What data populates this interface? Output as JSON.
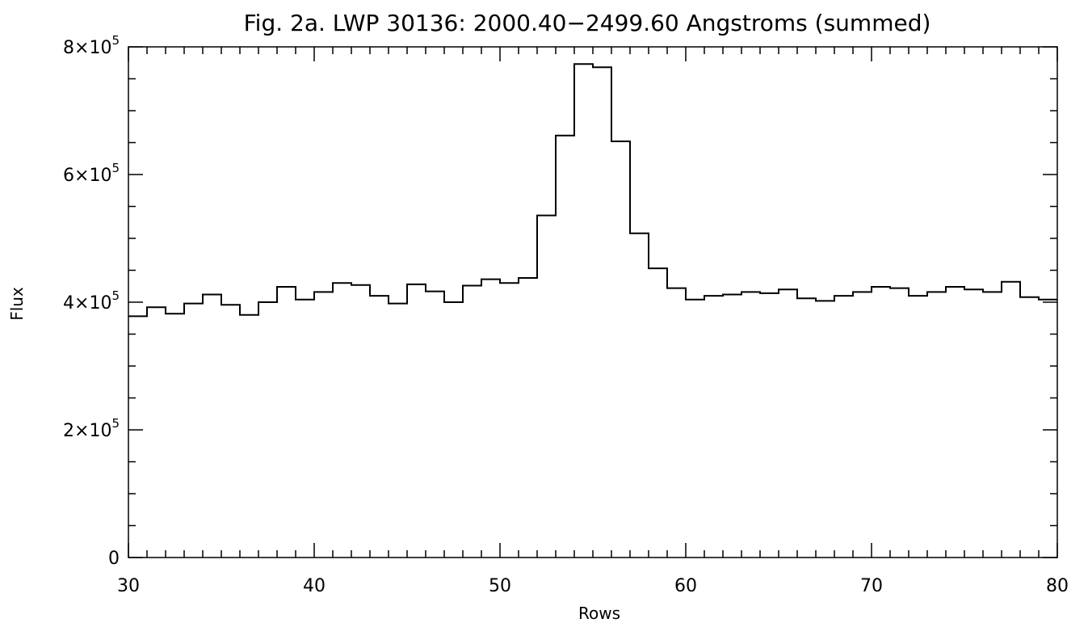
{
  "chart_data": {
    "type": "line",
    "style": "histogram-step",
    "title": "Fig. 2a.  LWP 30136:  2000.40−2499.60 Angstroms (summed)",
    "xlabel": "Rows",
    "ylabel": "Flux",
    "xlim": [
      30,
      80
    ],
    "ylim": [
      0,
      800000
    ],
    "x_ticks": [
      30,
      40,
      50,
      60,
      70,
      80
    ],
    "y_ticks": [
      {
        "value": 0,
        "label": "0"
      },
      {
        "value": 200000,
        "label": "2×10",
        "exp": "5"
      },
      {
        "value": 400000,
        "label": "4×10",
        "exp": "5"
      },
      {
        "value": 600000,
        "label": "6×10",
        "exp": "5"
      },
      {
        "value": 800000,
        "label": "8×10",
        "exp": "5"
      }
    ],
    "grid": false,
    "line_color": "#000000",
    "series": [
      {
        "x": [
          30,
          31,
          32,
          33,
          34,
          35,
          36,
          37,
          38,
          39,
          40,
          41,
          42,
          43,
          44,
          45,
          46,
          47,
          48,
          49,
          50,
          51,
          52,
          53,
          54,
          55,
          56,
          57,
          58,
          59,
          60,
          61,
          62,
          63,
          64,
          65,
          66,
          67,
          68,
          69,
          70,
          71,
          72,
          73,
          74,
          75,
          76,
          77,
          78,
          79
        ],
        "y": [
          378000,
          392000,
          382000,
          398000,
          412000,
          396000,
          380000,
          400000,
          424000,
          404000,
          416000,
          430000,
          427000,
          410000,
          398000,
          428000,
          417000,
          400000,
          426000,
          436000,
          430000,
          438000,
          536000,
          661000,
          773000,
          768000,
          652000,
          508000,
          453000,
          422000,
          404000,
          410000,
          412000,
          416000,
          414000,
          420000,
          406000,
          402000,
          410000,
          416000,
          424000,
          422000,
          410000,
          416000,
          424000,
          420000,
          416000,
          432000,
          408000,
          404000
        ]
      }
    ]
  }
}
